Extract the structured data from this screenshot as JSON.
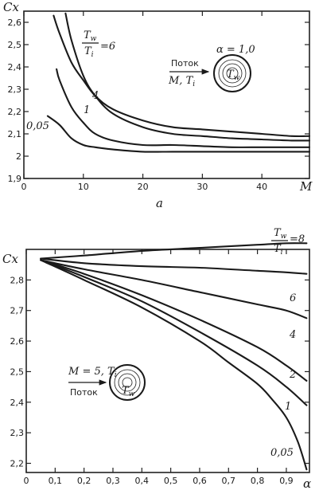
{
  "chart_data": [
    {
      "type": "line",
      "subplot_label": "a",
      "ylabel": "Cx",
      "xlabel": "M",
      "xlim": [
        0,
        48
      ],
      "ylim": [
        1.9,
        2.65
      ],
      "xticks": [
        0,
        10,
        20,
        30,
        40
      ],
      "yticks": [
        1.9,
        2.0,
        2.1,
        2.2,
        2.3,
        2.4,
        2.5,
        2.6
      ],
      "series": [
        {
          "name": "6",
          "x": [
            5,
            6,
            8,
            10,
            12,
            15,
            20,
            25,
            30,
            35,
            40,
            45,
            48
          ],
          "y": [
            2.63,
            2.55,
            2.42,
            2.34,
            2.27,
            2.21,
            2.16,
            2.13,
            2.12,
            2.11,
            2.1,
            2.09,
            2.09
          ]
        },
        {
          "name": "4",
          "x": [
            7,
            8,
            10,
            12,
            15,
            20,
            25,
            30,
            35,
            40,
            45,
            48
          ],
          "y": [
            2.64,
            2.52,
            2.36,
            2.27,
            2.19,
            2.13,
            2.1,
            2.09,
            2.08,
            2.075,
            2.07,
            2.07
          ]
        },
        {
          "name": "1",
          "x": [
            5.5,
            6,
            8,
            10,
            12,
            15,
            20,
            25,
            30,
            35,
            40,
            45,
            48
          ],
          "y": [
            2.39,
            2.34,
            2.22,
            2.15,
            2.1,
            2.07,
            2.05,
            2.05,
            2.045,
            2.04,
            2.04,
            2.04,
            2.04
          ]
        },
        {
          "name": "0,05",
          "x": [
            4,
            6,
            8,
            10,
            12,
            15,
            20,
            25,
            30,
            35,
            40,
            45,
            48
          ],
          "y": [
            2.18,
            2.14,
            2.08,
            2.05,
            2.04,
            2.03,
            2.02,
            2.02,
            2.02,
            2.02,
            2.02,
            2.02,
            2.02
          ]
        }
      ],
      "series_labels": {
        "param_num": "T",
        "param_num_sub": "w",
        "param_den": "T",
        "param_den_sub": "i",
        "param_value": "=6",
        "s4": "4",
        "s1": "1",
        "s005": "0,05"
      },
      "inset": {
        "flow": "Поток",
        "flow_params": "M, T",
        "flow_params_sub": "i",
        "alpha": "α = 1,0",
        "body": "T",
        "body_sub": "w"
      }
    },
    {
      "type": "line",
      "ylabel": "Cx",
      "xlabel": "α",
      "xlim": [
        0,
        0.98
      ],
      "ylim": [
        2.17,
        2.9
      ],
      "xticks": [
        0,
        0.1,
        0.2,
        0.3,
        0.4,
        0.5,
        0.6,
        0.7,
        0.8,
        0.9
      ],
      "xtick_labels": [
        "0",
        "0,1",
        "0,2",
        "0,3",
        "0,4",
        "0,5",
        "0,6",
        "0,7",
        "0,8",
        "0,9"
      ],
      "yticks": [
        2.2,
        2.3,
        2.4,
        2.5,
        2.6,
        2.7,
        2.8
      ],
      "ytick_labels": [
        "2,2",
        "2,3",
        "2,4",
        "2,5",
        "2,6",
        "2,7",
        "2,8"
      ],
      "series": [
        {
          "name": "8",
          "x": [
            0.05,
            0.2,
            0.4,
            0.6,
            0.8,
            0.9,
            0.97
          ],
          "y": [
            2.87,
            2.88,
            2.895,
            2.905,
            2.915,
            2.92,
            2.92
          ]
        },
        {
          "name": "6",
          "x": [
            0.05,
            0.2,
            0.4,
            0.6,
            0.8,
            0.9,
            0.97
          ],
          "y": [
            2.87,
            2.855,
            2.845,
            2.84,
            2.83,
            2.825,
            2.82
          ]
        },
        {
          "name": "4",
          "x": [
            0.05,
            0.2,
            0.4,
            0.6,
            0.8,
            0.9,
            0.97
          ],
          "y": [
            2.865,
            2.835,
            2.8,
            2.76,
            2.72,
            2.7,
            2.675
          ]
        },
        {
          "name": "2",
          "x": [
            0.05,
            0.2,
            0.4,
            0.6,
            0.8,
            0.9,
            0.97
          ],
          "y": [
            2.865,
            2.82,
            2.75,
            2.67,
            2.58,
            2.52,
            2.47
          ]
        },
        {
          "name": "1",
          "x": [
            0.05,
            0.2,
            0.4,
            0.6,
            0.8,
            0.9,
            0.97
          ],
          "y": [
            2.865,
            2.81,
            2.73,
            2.63,
            2.52,
            2.45,
            2.39
          ]
        },
        {
          "name": "0,05",
          "x": [
            0.05,
            0.2,
            0.4,
            0.6,
            0.7,
            0.8,
            0.85,
            0.9,
            0.94,
            0.97
          ],
          "y": [
            2.865,
            2.8,
            2.71,
            2.6,
            2.53,
            2.46,
            2.41,
            2.35,
            2.27,
            2.18
          ]
        }
      ],
      "series_labels": {
        "param_num": "T",
        "param_num_sub": "w",
        "param_den": "T",
        "param_den_sub": "i",
        "param_value": "=8",
        "s6": "6",
        "s4": "4",
        "s2": "2",
        "s1": "1",
        "s005": "0,05"
      },
      "inset": {
        "flow": "Поток",
        "flow_params": "M = 5, T",
        "flow_params_sub": "i",
        "body": "T",
        "body_sub": "w"
      }
    }
  ]
}
